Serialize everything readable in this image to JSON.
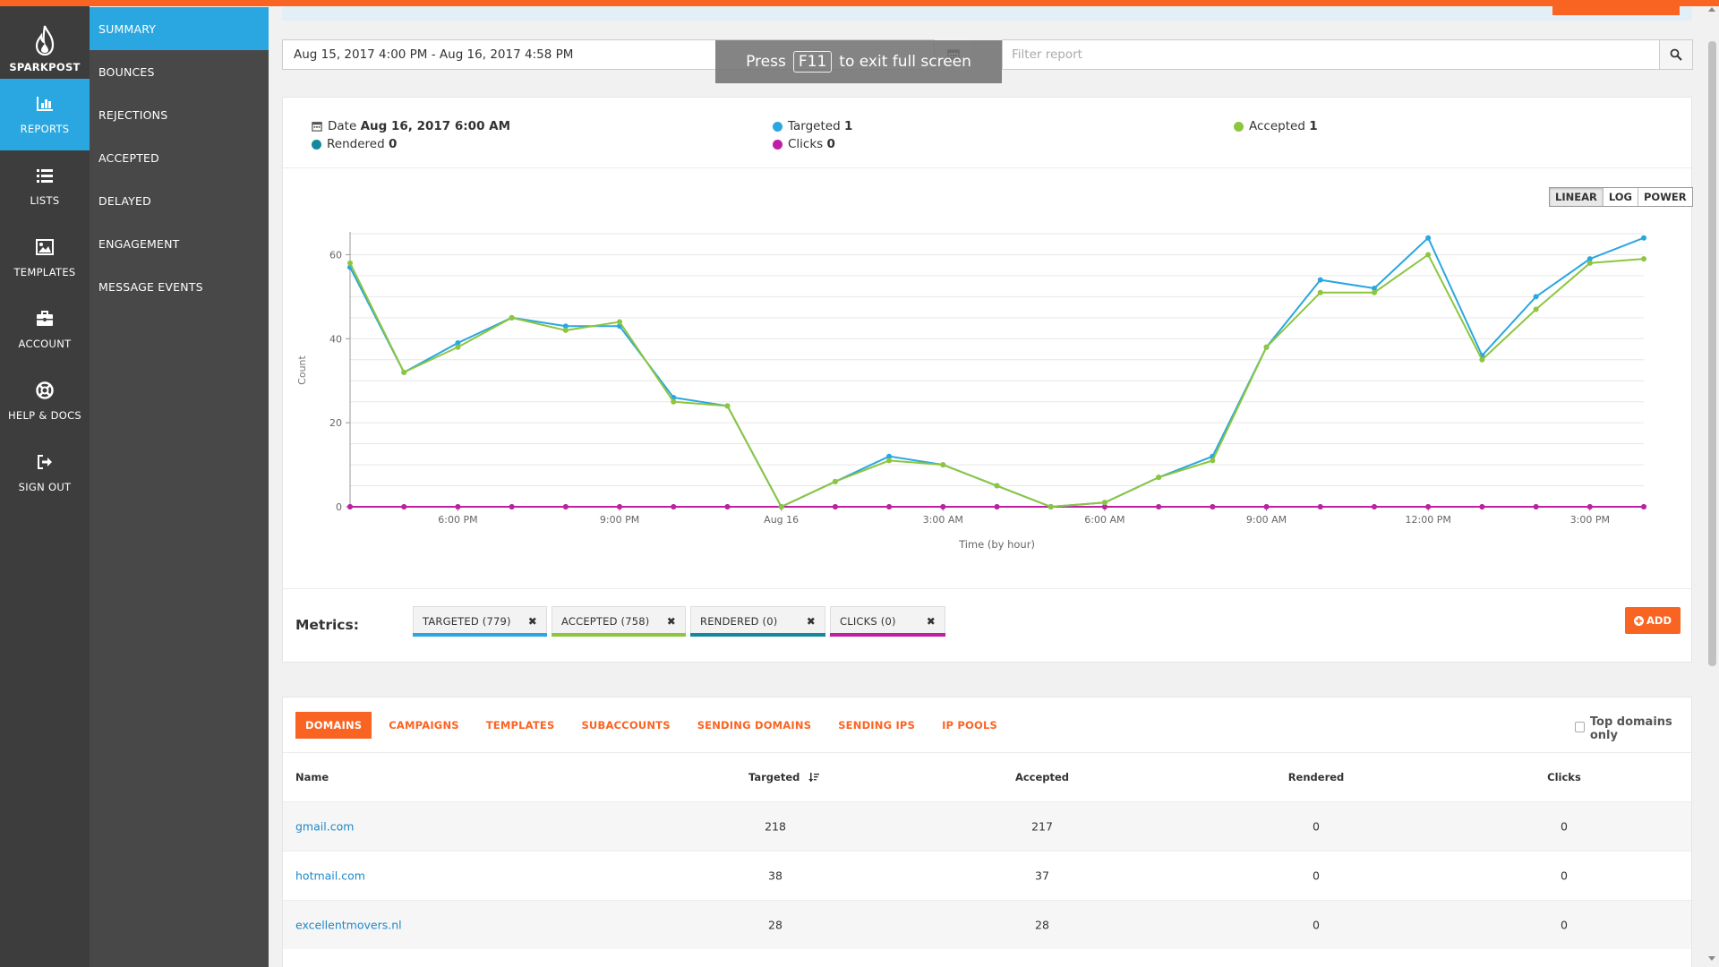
{
  "nav": {
    "logo": "SPARKPOST",
    "items": [
      {
        "label": "REPORTS",
        "icon": "bar-chart-icon"
      },
      {
        "label": "LISTS",
        "icon": "list-icon"
      },
      {
        "label": "TEMPLATES",
        "icon": "image-icon"
      },
      {
        "label": "ACCOUNT",
        "icon": "briefcase-icon"
      },
      {
        "label": "HELP & DOCS",
        "icon": "lifebuoy-icon"
      },
      {
        "label": "SIGN OUT",
        "icon": "sign-out-icon"
      }
    ]
  },
  "subnav": {
    "items": [
      "SUMMARY",
      "BOUNCES",
      "REJECTIONS",
      "ACCEPTED",
      "DELAYED",
      "ENGAGEMENT",
      "MESSAGE EVENTS"
    ]
  },
  "toolbar": {
    "date_range": "Aug 15, 2017 4:00 PM - Aug 16, 2017 4:58 PM",
    "filter_placeholder": "Filter report"
  },
  "fullscreen_toast": {
    "before": "Press",
    "key": "F11",
    "after": "to exit full screen"
  },
  "tooltip": {
    "date_label": "Date",
    "date_value": "Aug 16, 2017 6:00 AM",
    "targeted_label": "Targeted",
    "targeted_value": "1",
    "accepted_label": "Accepted",
    "accepted_value": "1",
    "rendered_label": "Rendered",
    "rendered_value": "0",
    "clicks_label": "Clicks",
    "clicks_value": "0"
  },
  "scale_buttons": [
    "LINEAR",
    "LOG",
    "POWER"
  ],
  "colors": {
    "targeted": "#2aa7e1",
    "accepted": "#8cc63f",
    "rendered": "#13899f",
    "clicks": "#c01fa5",
    "accent": "#fa6423"
  },
  "chart_data": {
    "type": "line",
    "xlabel": "Time (by hour)",
    "ylabel": "Count",
    "ylim": [
      0,
      65
    ],
    "yticks": [
      0,
      20,
      40,
      60
    ],
    "xtick_labels": [
      {
        "i": 2,
        "label": "6:00 PM"
      },
      {
        "i": 5,
        "label": "9:00 PM"
      },
      {
        "i": 8,
        "label": "Aug 16"
      },
      {
        "i": 11,
        "label": "3:00 AM"
      },
      {
        "i": 14,
        "label": "6:00 AM"
      },
      {
        "i": 17,
        "label": "9:00 AM"
      },
      {
        "i": 20,
        "label": "12:00 PM"
      },
      {
        "i": 23,
        "label": "3:00 PM"
      }
    ],
    "x": [
      "4:00 PM",
      "5:00 PM",
      "6:00 PM",
      "7:00 PM",
      "8:00 PM",
      "9:00 PM",
      "10:00 PM",
      "11:00 PM",
      "12:00 AM",
      "1:00 AM",
      "2:00 AM",
      "3:00 AM",
      "4:00 AM",
      "5:00 AM",
      "6:00 AM",
      "7:00 AM",
      "8:00 AM",
      "9:00 AM",
      "10:00 AM",
      "11:00 AM",
      "12:00 PM",
      "1:00 PM",
      "2:00 PM",
      "3:00 PM",
      "4:00 PM"
    ],
    "series": [
      {
        "name": "Targeted",
        "color": "#2aa7e1",
        "values": [
          57,
          32,
          39,
          45,
          43,
          43,
          26,
          24,
          0,
          6,
          12,
          10,
          5,
          0,
          1,
          7,
          12,
          38,
          54,
          52,
          64,
          36,
          50,
          59,
          64
        ]
      },
      {
        "name": "Accepted",
        "color": "#8cc63f",
        "values": [
          58,
          32,
          38,
          45,
          42,
          44,
          25,
          24,
          0,
          6,
          11,
          10,
          5,
          0,
          1,
          7,
          11,
          38,
          51,
          51,
          60,
          35,
          47,
          58,
          59
        ]
      },
      {
        "name": "Rendered",
        "color": "#13899f",
        "values": [
          0,
          0,
          0,
          0,
          0,
          0,
          0,
          0,
          0,
          0,
          0,
          0,
          0,
          0,
          0,
          0,
          0,
          0,
          0,
          0,
          0,
          0,
          0,
          0,
          0
        ]
      },
      {
        "name": "Clicks",
        "color": "#c01fa5",
        "values": [
          0,
          0,
          0,
          0,
          0,
          0,
          0,
          0,
          0,
          0,
          0,
          0,
          0,
          0,
          0,
          0,
          0,
          0,
          0,
          0,
          0,
          0,
          0,
          0,
          0
        ]
      }
    ]
  },
  "metrics": {
    "label": "Metrics:",
    "tags": [
      {
        "label": "TARGETED (779)",
        "color": "#2aa7e1"
      },
      {
        "label": "ACCEPTED (758)",
        "color": "#8cc63f"
      },
      {
        "label": "RENDERED (0)",
        "color": "#13899f"
      },
      {
        "label": "CLICKS (0)",
        "color": "#c01fa5"
      }
    ],
    "add_label": "ADD"
  },
  "table": {
    "tabs": [
      "DOMAINS",
      "CAMPAIGNS",
      "TEMPLATES",
      "SUBACCOUNTS",
      "SENDING DOMAINS",
      "SENDING IPS",
      "IP POOLS"
    ],
    "top_domains_label": "Top domains only",
    "columns": [
      "Name",
      "Targeted",
      "Accepted",
      "Rendered",
      "Clicks"
    ],
    "rows": [
      {
        "name": "gmail.com",
        "targeted": "218",
        "accepted": "217",
        "rendered": "0",
        "clicks": "0"
      },
      {
        "name": "hotmail.com",
        "targeted": "38",
        "accepted": "37",
        "rendered": "0",
        "clicks": "0"
      },
      {
        "name": "excellentmovers.nl",
        "targeted": "28",
        "accepted": "28",
        "rendered": "0",
        "clicks": "0"
      }
    ]
  }
}
